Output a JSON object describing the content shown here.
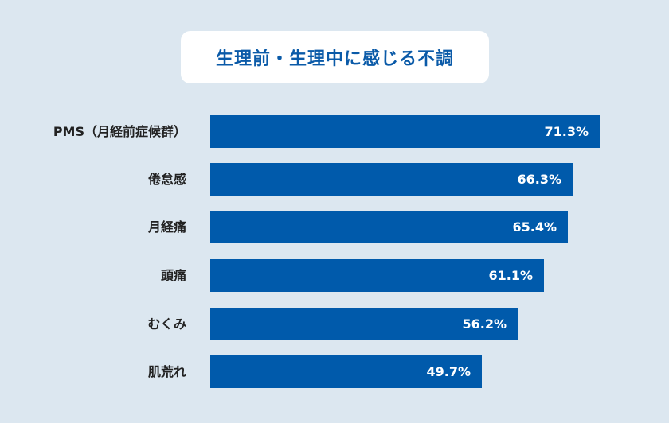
{
  "title": "生理前・生理中に感じる不調",
  "colors": {
    "background": "#dce7f0",
    "bar": "#005aab",
    "title": "#0a5aa8",
    "label": "#222222"
  },
  "chart_data": {
    "type": "bar",
    "orientation": "horizontal",
    "title": "生理前・生理中に感じる不調",
    "categories": [
      "PMS（月経前症候群）",
      "倦怠感",
      "月経痛",
      "頭痛",
      "むくみ",
      "肌荒れ"
    ],
    "values": [
      71.3,
      66.3,
      65.4,
      61.1,
      56.2,
      49.7
    ],
    "value_labels": [
      "71.3%",
      "66.3%",
      "65.4%",
      "61.1%",
      "56.2%",
      "49.7%"
    ],
    "unit": "%",
    "xlabel": "",
    "ylabel": "",
    "grid": false,
    "legend": false
  },
  "rows": [
    {
      "label": "PMS（月経前症候群）",
      "value": "71.3%"
    },
    {
      "label": "倦怠感",
      "value": "66.3%"
    },
    {
      "label": "月経痛",
      "value": "65.4%"
    },
    {
      "label": "頭痛",
      "value": "61.1%"
    },
    {
      "label": "むくみ",
      "value": "56.2%"
    },
    {
      "label": "肌荒れ",
      "value": "49.7%"
    }
  ]
}
